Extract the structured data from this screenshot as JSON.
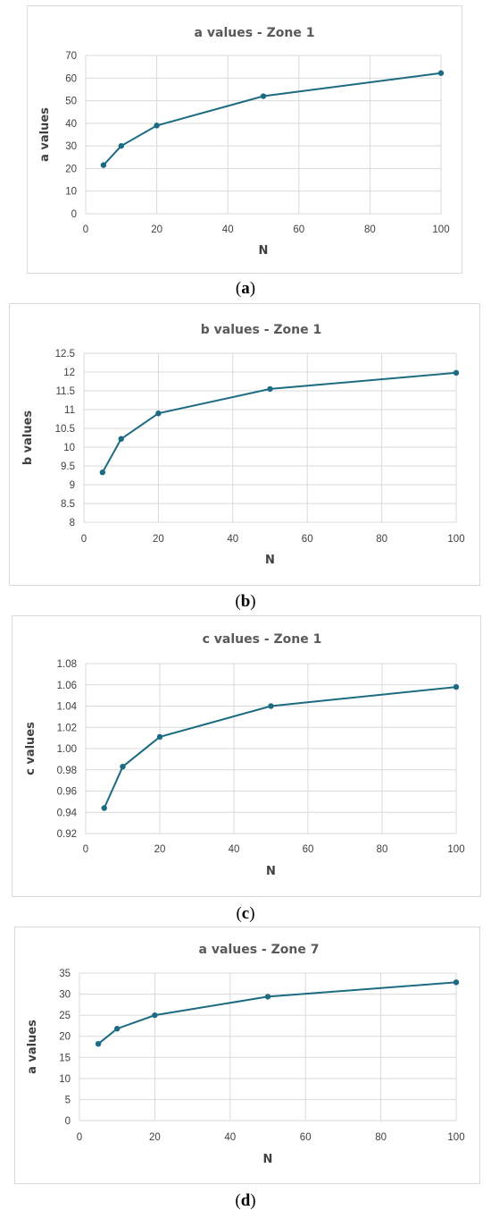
{
  "chart_data": [
    {
      "type": "line",
      "title": "a values - Zone 1",
      "xlabel": "N",
      "ylabel": "a values",
      "caption_letter": "a",
      "xlim": [
        0,
        100
      ],
      "ylim": [
        0,
        70
      ],
      "xticks": [
        "0",
        "20",
        "40",
        "60",
        "80",
        "100"
      ],
      "yticks": [
        "0",
        "10",
        "20",
        "30",
        "40",
        "50",
        "60",
        "70"
      ],
      "x": [
        5,
        10,
        20,
        50,
        100
      ],
      "y": [
        21.5,
        30,
        39,
        52,
        62.2
      ],
      "grid": true,
      "color": "#1c6b82"
    },
    {
      "type": "line",
      "title": "b values - Zone 1",
      "xlabel": "N",
      "ylabel": "b values",
      "caption_letter": "b",
      "xlim": [
        0,
        100
      ],
      "ylim": [
        8,
        12.5
      ],
      "xticks": [
        "0",
        "20",
        "40",
        "60",
        "80",
        "100"
      ],
      "yticks": [
        "8",
        "8.5",
        "9",
        "9.5",
        "10",
        "10.5",
        "11",
        "11.5",
        "12",
        "12.5"
      ],
      "x": [
        5,
        10,
        20,
        50,
        100
      ],
      "y": [
        9.33,
        10.22,
        10.9,
        11.55,
        11.98
      ],
      "grid": true,
      "color": "#1c6b82"
    },
    {
      "type": "line",
      "title": "c values - Zone 1",
      "xlabel": "N",
      "ylabel": "c values",
      "caption_letter": "c",
      "xlim": [
        0,
        100
      ],
      "ylim": [
        0.92,
        1.08
      ],
      "xticks": [
        "0",
        "20",
        "40",
        "60",
        "80",
        "100"
      ],
      "yticks": [
        "0.92",
        "0.94",
        "0.96",
        "0.98",
        "1.00",
        "1.02",
        "1.04",
        "1.06",
        "1.08"
      ],
      "x": [
        5,
        10,
        20,
        50,
        100
      ],
      "y": [
        0.944,
        0.983,
        1.011,
        1.04,
        1.058
      ],
      "grid": true,
      "color": "#1c6b82"
    },
    {
      "type": "line",
      "title": "a values - Zone 7",
      "xlabel": "N",
      "ylabel": "a values",
      "caption_letter": "d",
      "xlim": [
        0,
        100
      ],
      "ylim": [
        0,
        35
      ],
      "xticks": [
        "0",
        "20",
        "40",
        "60",
        "80",
        "100"
      ],
      "yticks": [
        "0",
        "5",
        "10",
        "15",
        "20",
        "25",
        "30",
        "35"
      ],
      "x": [
        5,
        10,
        20,
        50,
        100
      ],
      "y": [
        18.2,
        21.8,
        25,
        29.4,
        32.8
      ],
      "grid": true,
      "color": "#1c6b82"
    }
  ]
}
